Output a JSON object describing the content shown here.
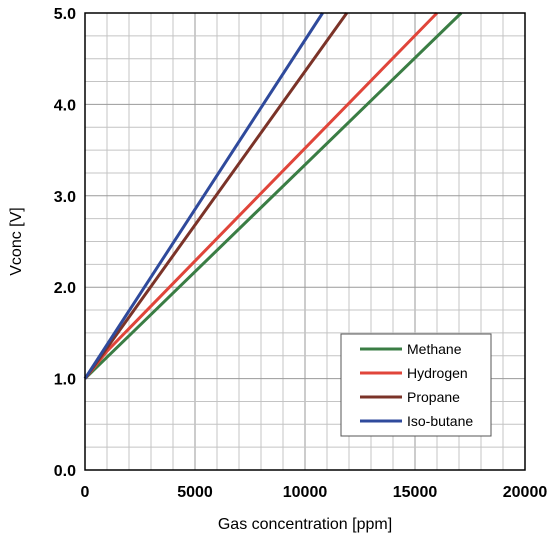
{
  "chart_data": {
    "type": "line",
    "xlabel": "Gas concentration [ppm]",
    "ylabel": "Vconc [V]",
    "xlim": [
      0,
      20000
    ],
    "ylim": [
      0.0,
      5.0
    ],
    "x_ticks": [
      0,
      5000,
      10000,
      15000,
      20000
    ],
    "x_tick_labels": [
      "0",
      "5000",
      "10000",
      "15000",
      "20000"
    ],
    "y_ticks": [
      0.0,
      1.0,
      2.0,
      3.0,
      4.0,
      5.0
    ],
    "y_tick_labels": [
      "0.0",
      "1.0",
      "2.0",
      "3.0",
      "4.0",
      "5.0"
    ],
    "x_minor_step": 1000,
    "y_minor_step": 0.25,
    "grid": true,
    "legend_position": "bottom-right",
    "series": [
      {
        "name": "Methane",
        "color": "#3a7d44",
        "points": [
          [
            0,
            1.0
          ],
          [
            17100,
            5.0
          ]
        ]
      },
      {
        "name": "Hydrogen",
        "color": "#e0453a",
        "points": [
          [
            0,
            1.0
          ],
          [
            1000,
            1.3
          ],
          [
            16000,
            5.0
          ]
        ]
      },
      {
        "name": "Propane",
        "color": "#7b3328",
        "points": [
          [
            0,
            1.0
          ],
          [
            11900,
            5.0
          ]
        ]
      },
      {
        "name": "Iso-butane",
        "color": "#2f4a9c",
        "points": [
          [
            0,
            1.0
          ],
          [
            10800,
            5.0
          ]
        ]
      }
    ]
  }
}
